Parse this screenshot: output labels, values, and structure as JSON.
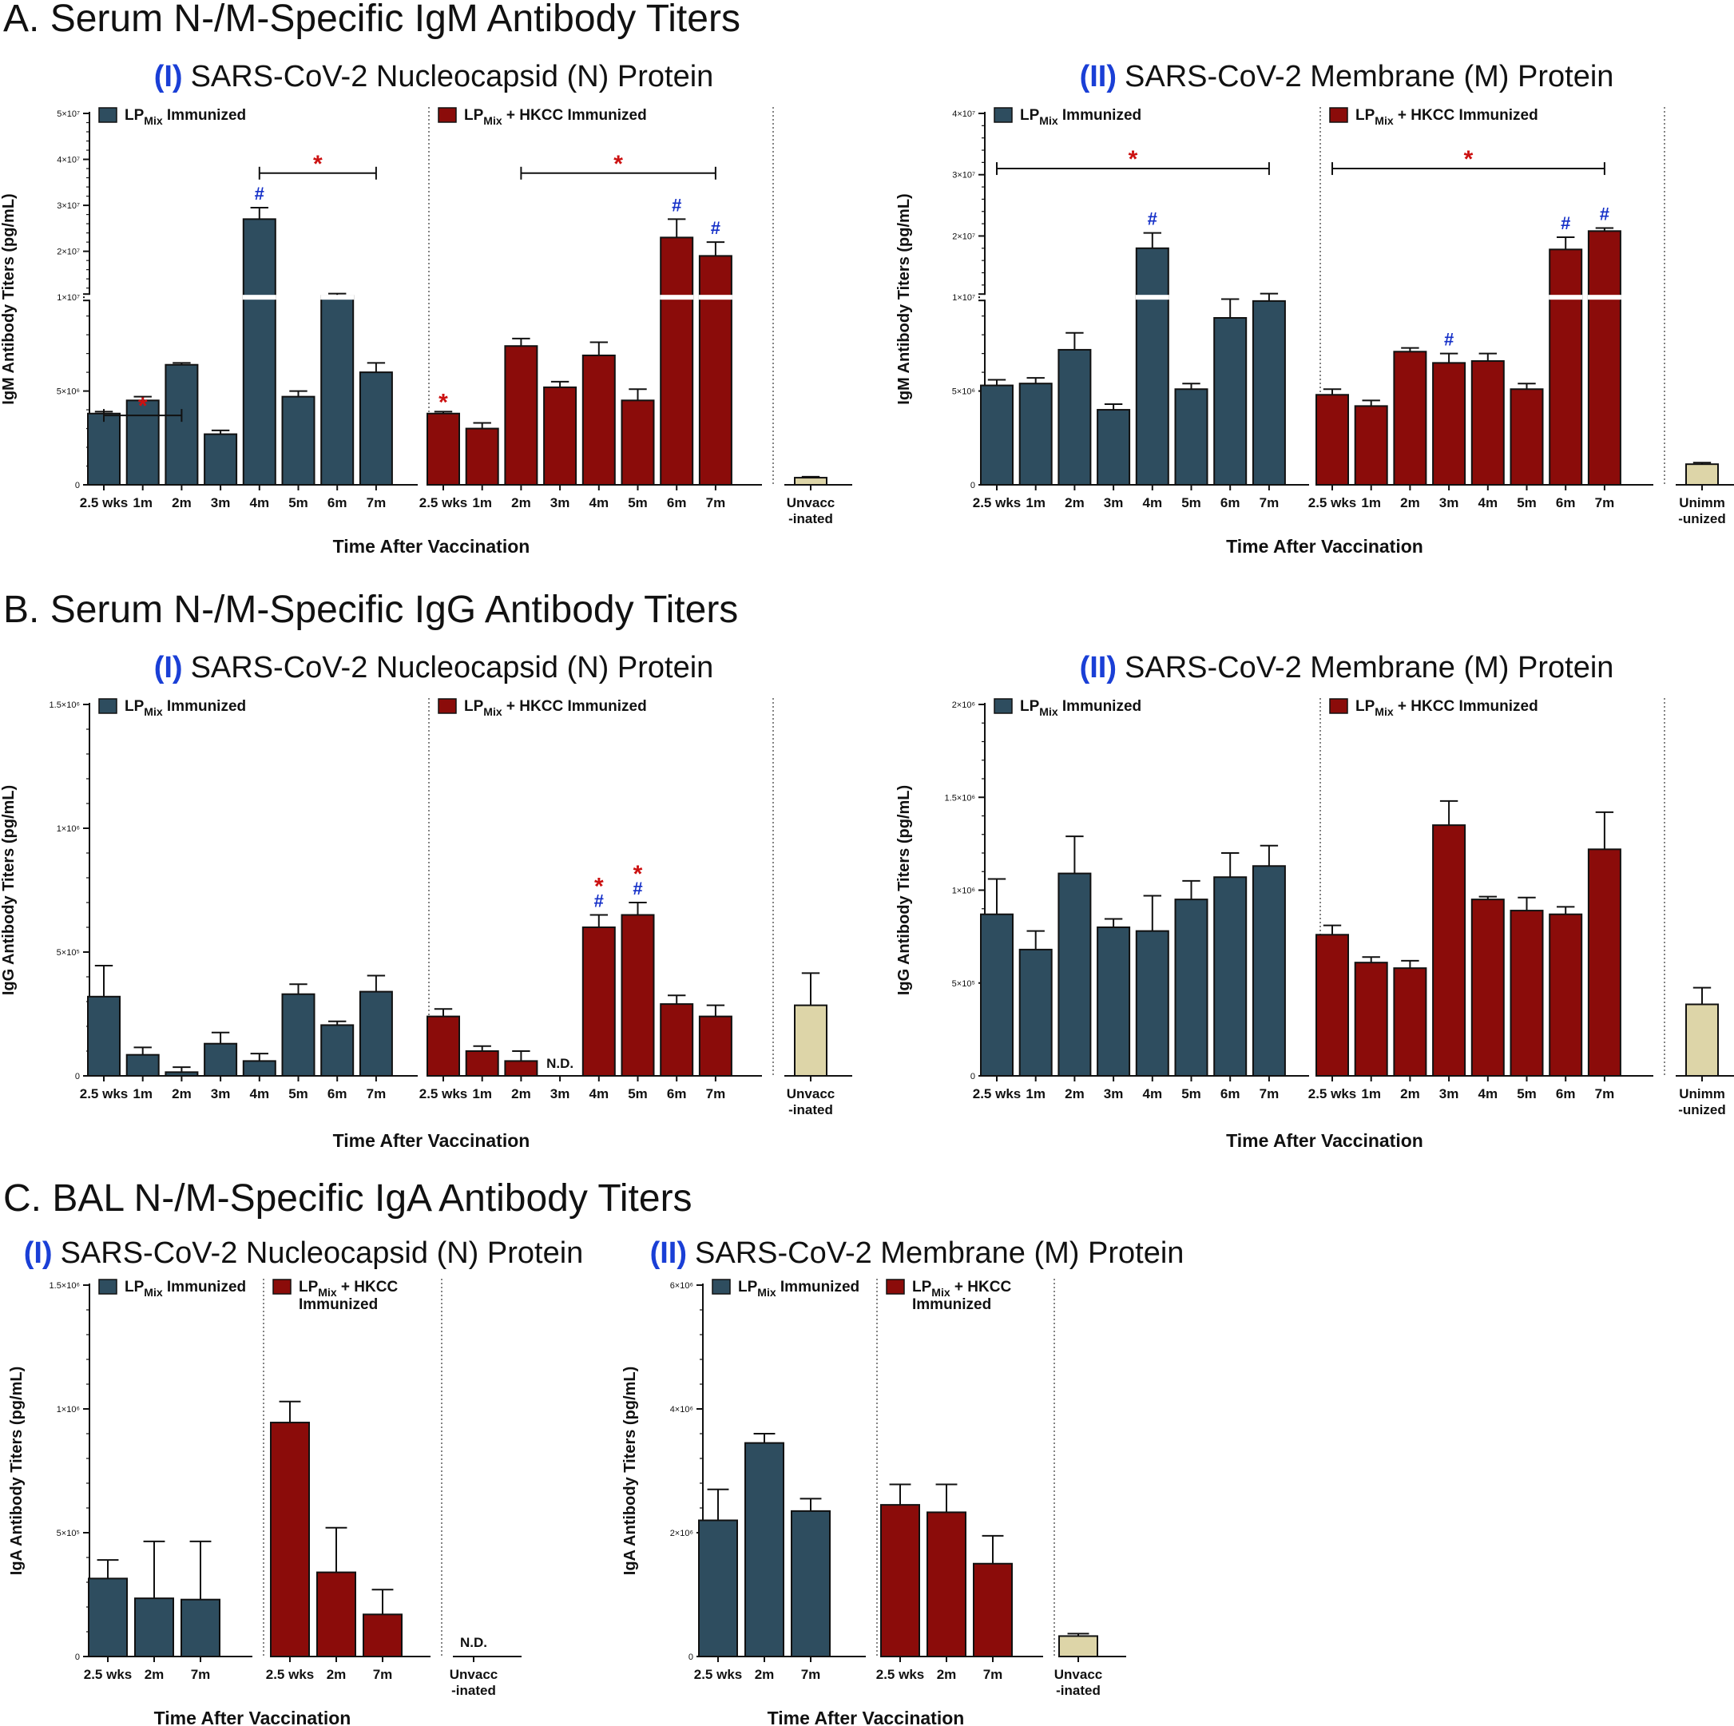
{
  "colors": {
    "lp": "#2e4d5f",
    "hkcc": "#8b0c0a",
    "ctrl": "#ddd5a8",
    "sig_star": "#cc1111",
    "sig_hash": "#1530c8",
    "roman": "#1a3fd6"
  },
  "legend": {
    "lp_main": "LP",
    "lp_sub": "Mix",
    "lp_tail": " Immunized",
    "hk_main": "LP",
    "hk_sub": "Mix",
    "hk_tail": " + HKCC Immunized",
    "hk_tail_short": " + HKCC",
    "hk_tail_line2": "Immunized"
  },
  "sections": [
    {
      "title": "A. Serum N-/M-Specific IgM Antibody Titers"
    },
    {
      "title": "B. Serum N-/M-Specific IgG Antibody Titers"
    },
    {
      "title": "C. BAL N-/M-Specific IgA Antibody Titers"
    }
  ],
  "chart_data": [
    {
      "id": "A1",
      "type": "bar",
      "roman": "(I)",
      "title": "SARS-CoV-2 Nucleocapsid (N) Protein",
      "ylabel": "IgM Antibody Titers (pg/mL)",
      "xlabel": "Time After Vaccination",
      "broken_axis": true,
      "lower_range": [
        0,
        10000000
      ],
      "upper_range": [
        10000000,
        50000000
      ],
      "lower_ticks": [
        [
          0,
          "0"
        ],
        [
          5000000,
          "5×10⁶"
        ],
        [
          10000000,
          "1×10⁷"
        ]
      ],
      "upper_ticks": [
        [
          20000000,
          "2×10⁷"
        ],
        [
          30000000,
          "3×10⁷"
        ],
        [
          40000000,
          "4×10⁷"
        ],
        [
          50000000,
          "5×10⁷"
        ]
      ],
      "categories": [
        "2.5 wks",
        "1m",
        "2m",
        "3m",
        "4m",
        "5m",
        "6m",
        "7m"
      ],
      "series": [
        {
          "name": "LPMix Immunized",
          "values": [
            3800000,
            4500000,
            6400000,
            2700000,
            27000000,
            4700000,
            10300000,
            6000000
          ],
          "errors": [
            100000,
            200000,
            100000,
            200000,
            2500000,
            300000,
            500000,
            500000
          ]
        },
        {
          "name": "LPMix + HKCC Immunized",
          "values": [
            3800000,
            3000000,
            7400000,
            5200000,
            6900000,
            4500000,
            23000000,
            19000000
          ],
          "errors": [
            100000,
            300000,
            400000,
            300000,
            700000,
            600000,
            4000000,
            3000000
          ]
        }
      ],
      "control": {
        "label": [
          "Unvacc",
          "-inated"
        ],
        "value": 380000,
        "error": 50000
      },
      "markers": [
        {
          "series": 0,
          "index": 4,
          "text": "#"
        },
        {
          "series": 1,
          "index": 0,
          "text": "*"
        },
        {
          "series": 1,
          "index": 6,
          "text": "#"
        },
        {
          "series": 1,
          "index": 7,
          "text": "#"
        }
      ],
      "brackets": [
        {
          "series": 0,
          "from": 0,
          "to": 2,
          "value": 3700000,
          "text": "*"
        },
        {
          "series": 0,
          "from": 4,
          "to": 7,
          "value": 37000000,
          "text": "*"
        },
        {
          "series": 1,
          "from": 2,
          "to": 7,
          "value": 37000000,
          "text": "*"
        }
      ]
    },
    {
      "id": "A2",
      "type": "bar",
      "roman": "(II)",
      "title": "SARS-CoV-2 Membrane (M) Protein",
      "ylabel": "IgM Antibody Titers (pg/mL)",
      "xlabel": "Time After Vaccination",
      "broken_axis": true,
      "lower_range": [
        0,
        10000000
      ],
      "upper_range": [
        10000000,
        40000000
      ],
      "lower_ticks": [
        [
          0,
          "0"
        ],
        [
          5000000,
          "5×10⁶"
        ],
        [
          10000000,
          "1×10⁷"
        ]
      ],
      "upper_ticks": [
        [
          20000000,
          "2×10⁷"
        ],
        [
          30000000,
          "3×10⁷"
        ],
        [
          40000000,
          "4×10⁷"
        ]
      ],
      "categories": [
        "2.5 wks",
        "1m",
        "2m",
        "3m",
        "4m",
        "5m",
        "6m",
        "7m"
      ],
      "series": [
        {
          "name": "LPMix Immunized",
          "values": [
            5300000,
            5400000,
            7200000,
            4000000,
            18000000,
            5100000,
            8900000,
            9800000
          ],
          "errors": [
            300000,
            300000,
            900000,
            300000,
            2500000,
            300000,
            1000000,
            800000
          ]
        },
        {
          "name": "LPMix + HKCC Immunized",
          "values": [
            4800000,
            4200000,
            7100000,
            6500000,
            6600000,
            5100000,
            17800000,
            20800000
          ],
          "errors": [
            300000,
            300000,
            200000,
            500000,
            400000,
            300000,
            2000000,
            500000
          ]
        }
      ],
      "control": {
        "label": [
          "Unimm",
          "-unized"
        ],
        "value": 1100000,
        "error": 80000
      },
      "markers": [
        {
          "series": 0,
          "index": 4,
          "text": "#"
        },
        {
          "series": 1,
          "index": 3,
          "text": "#"
        },
        {
          "series": 1,
          "index": 6,
          "text": "#"
        },
        {
          "series": 1,
          "index": 7,
          "text": "#"
        }
      ],
      "brackets": [
        {
          "series": 0,
          "from": 0,
          "to": 7,
          "value": 31000000,
          "text": "*"
        },
        {
          "series": 1,
          "from": 0,
          "to": 7,
          "value": 31000000,
          "text": "*"
        }
      ]
    },
    {
      "id": "B1",
      "type": "bar",
      "roman": "(I)",
      "title": "SARS-CoV-2 Nucleocapsid (N) Protein",
      "ylabel": "IgG Antibody Titers (pg/mL)",
      "xlabel": "Time After Vaccination",
      "broken_axis": false,
      "ylim": [
        0,
        1500000
      ],
      "ticks": [
        [
          0,
          "0"
        ],
        [
          500000,
          "5×10⁵"
        ],
        [
          1000000,
          "1×10⁶"
        ],
        [
          1500000,
          "1.5×10⁶"
        ]
      ],
      "categories": [
        "2.5 wks",
        "1m",
        "2m",
        "3m",
        "4m",
        "5m",
        "6m",
        "7m"
      ],
      "series": [
        {
          "name": "LPMix Immunized",
          "values": [
            320000,
            85000,
            15000,
            130000,
            60000,
            330000,
            205000,
            340000
          ],
          "errors": [
            125000,
            30000,
            20000,
            45000,
            30000,
            40000,
            15000,
            65000
          ]
        },
        {
          "name": "LPMix + HKCC Immunized",
          "values": [
            240000,
            100000,
            60000,
            null,
            600000,
            650000,
            290000,
            240000
          ],
          "errors": [
            30000,
            20000,
            40000,
            null,
            50000,
            50000,
            35000,
            45000
          ]
        }
      ],
      "nd": [
        {
          "series": 1,
          "index": 3,
          "text": "N.D."
        }
      ],
      "control": {
        "label": [
          "Unvacc",
          "-inated"
        ],
        "value": 285000,
        "error": 130000
      },
      "markers": [
        {
          "series": 1,
          "index": 4,
          "text": "*#"
        },
        {
          "series": 1,
          "index": 5,
          "text": "*#"
        }
      ],
      "brackets": []
    },
    {
      "id": "B2",
      "type": "bar",
      "roman": "(II)",
      "title": "SARS-CoV-2 Membrane (M) Protein",
      "ylabel": "IgG Antibody Titers (pg/mL)",
      "xlabel": "Time After Vaccination",
      "broken_axis": false,
      "ylim": [
        0,
        2000000
      ],
      "ticks": [
        [
          0,
          "0"
        ],
        [
          500000,
          "5×10⁵"
        ],
        [
          1000000,
          "1×10⁶"
        ],
        [
          1500000,
          "1.5×10⁶"
        ],
        [
          2000000,
          "2×10⁶"
        ]
      ],
      "categories": [
        "2.5 wks",
        "1m",
        "2m",
        "3m",
        "4m",
        "5m",
        "6m",
        "7m"
      ],
      "series": [
        {
          "name": "LPMix Immunized",
          "values": [
            870000,
            680000,
            1090000,
            800000,
            780000,
            950000,
            1070000,
            1130000
          ],
          "errors": [
            190000,
            100000,
            200000,
            45000,
            190000,
            100000,
            130000,
            110000
          ]
        },
        {
          "name": "LPMix + HKCC Immunized",
          "values": [
            760000,
            610000,
            580000,
            1350000,
            950000,
            890000,
            870000,
            1220000
          ],
          "errors": [
            50000,
            30000,
            40000,
            130000,
            15000,
            70000,
            40000,
            200000
          ]
        }
      ],
      "control": {
        "label": [
          "Unimm",
          "-unized"
        ],
        "value": 385000,
        "error": 90000
      },
      "markers": [],
      "brackets": []
    },
    {
      "id": "C1",
      "type": "bar",
      "roman": "(I)",
      "title": "SARS-CoV-2 Nucleocapsid (N) Protein",
      "ylabel": "IgA Antibody Titers (pg/mL)",
      "xlabel": "Time After Vaccination",
      "broken_axis": false,
      "ylim": [
        0,
        1500000
      ],
      "compact_legend": true,
      "ticks": [
        [
          0,
          "0"
        ],
        [
          500000,
          "5×10⁵"
        ],
        [
          1000000,
          "1×10⁶"
        ],
        [
          1500000,
          "1.5×10⁶"
        ]
      ],
      "categories": [
        "2.5 wks",
        "2m",
        "7m"
      ],
      "series": [
        {
          "name": "LPMix Immunized",
          "values": [
            315000,
            235000,
            230000
          ],
          "errors": [
            75000,
            230000,
            235000
          ]
        },
        {
          "name": "LPMix + HKCC Immunized",
          "values": [
            945000,
            340000,
            170000
          ],
          "errors": [
            85000,
            180000,
            100000
          ]
        }
      ],
      "control": {
        "label": [
          "Unvacc",
          "-inated"
        ],
        "value": null,
        "error": null,
        "nd_text": "N.D."
      },
      "markers": [],
      "brackets": []
    },
    {
      "id": "C2",
      "type": "bar",
      "roman": "(II)",
      "title": "SARS-CoV-2 Membrane (M) Protein",
      "ylabel": "IgA Antibody Titers (pg/mL)",
      "xlabel": "Time After Vaccination",
      "broken_axis": false,
      "ylim": [
        0,
        6000000
      ],
      "compact_legend": true,
      "ticks": [
        [
          0,
          "0"
        ],
        [
          2000000,
          "2×10⁶"
        ],
        [
          4000000,
          "4×10⁶"
        ],
        [
          6000000,
          "6×10⁶"
        ]
      ],
      "categories": [
        "2.5 wks",
        "2m",
        "7m"
      ],
      "series": [
        {
          "name": "LPMix Immunized",
          "values": [
            2200000,
            3450000,
            2350000
          ],
          "errors": [
            500000,
            150000,
            200000
          ]
        },
        {
          "name": "LPMix + HKCC Immunized",
          "values": [
            2450000,
            2330000,
            1500000
          ],
          "errors": [
            330000,
            450000,
            450000
          ]
        }
      ],
      "control": {
        "label": [
          "Unvacc",
          "-inated"
        ],
        "value": 330000,
        "error": 40000
      },
      "markers": [],
      "brackets": []
    }
  ]
}
